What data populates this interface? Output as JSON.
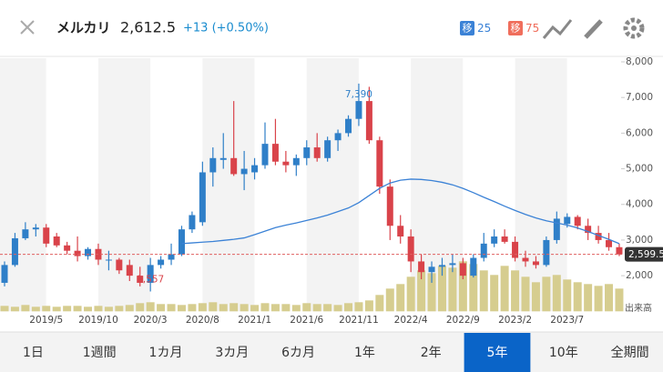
{
  "header": {
    "name": "メルカリ",
    "price": "2,612.5",
    "change": "+13 (+0.50%)",
    "ma_badges": [
      {
        "label": "移",
        "period": 25,
        "color": "#3b82d6"
      },
      {
        "label": "移",
        "period": 75,
        "color": "#f06e5c"
      }
    ]
  },
  "chart_data": {
    "type": "candlestick",
    "categories": [
      null,
      null,
      null,
      null,
      "2019/5",
      null,
      null,
      null,
      null,
      "2019/10",
      null,
      null,
      null,
      null,
      "2020/3",
      null,
      null,
      null,
      null,
      "2020/8",
      null,
      null,
      null,
      null,
      "2021/1",
      null,
      null,
      null,
      null,
      "2021/6",
      null,
      null,
      null,
      null,
      "2021/11",
      null,
      null,
      null,
      null,
      "2022/4",
      null,
      null,
      null,
      null,
      "2022/9",
      null,
      null,
      null,
      null,
      "2023/2",
      null,
      null,
      null,
      null,
      "2023/7",
      null,
      null,
      null,
      null,
      null
    ],
    "open": [
      1800,
      2300,
      3050,
      3300,
      3350,
      3100,
      2850,
      2700,
      2550,
      2750,
      2450,
      2450,
      2300,
      2000,
      1800,
      2300,
      2450,
      2600,
      3300,
      3500,
      4900,
      5250,
      5300,
      4850,
      4900,
      5100,
      5700,
      5200,
      5100,
      5300,
      5600,
      5300,
      5800,
      6000,
      6400,
      6900,
      5800,
      4500,
      3400,
      3100,
      2400,
      2100,
      2250,
      2300,
      2350,
      2000,
      2500,
      2900,
      3100,
      2950,
      2500,
      2400,
      2300,
      3000,
      3450,
      3650,
      3400,
      3200,
      3000,
      2800
    ],
    "high": [
      2400,
      3200,
      3500,
      3450,
      3450,
      3200,
      2950,
      3100,
      2800,
      2900,
      2700,
      2500,
      2450,
      2250,
      2500,
      2550,
      2900,
      3400,
      3800,
      5200,
      5600,
      6000,
      6900,
      5500,
      5300,
      6300,
      6400,
      5500,
      5400,
      5800,
      6000,
      5900,
      6100,
      6500,
      7390,
      7300,
      5900,
      4700,
      3700,
      3300,
      2600,
      2400,
      2500,
      2600,
      2500,
      2600,
      3200,
      3300,
      3300,
      3100,
      2700,
      2550,
      3100,
      3800,
      3750,
      3700,
      3600,
      3400,
      3200,
      2900
    ],
    "low": [
      1700,
      2250,
      3000,
      3100,
      2800,
      2800,
      2600,
      2400,
      2450,
      2300,
      2150,
      2050,
      1850,
      1700,
      1557,
      2200,
      2300,
      2550,
      3200,
      3400,
      4500,
      5000,
      4800,
      4400,
      4700,
      5000,
      5100,
      4900,
      4800,
      5100,
      5200,
      5200,
      5500,
      5900,
      6200,
      5700,
      4300,
      3000,
      2900,
      2100,
      1900,
      1800,
      2000,
      2100,
      1900,
      1950,
      2400,
      2800,
      2900,
      2400,
      2250,
      2200,
      2250,
      2900,
      3350,
      3300,
      3000,
      2900,
      2700,
      2550
    ],
    "close": [
      2300,
      3050,
      3300,
      3350,
      2900,
      2850,
      2700,
      2550,
      2750,
      2450,
      2450,
      2150,
      2000,
      1800,
      2300,
      2450,
      2600,
      3300,
      3700,
      4900,
      5300,
      5300,
      4850,
      5000,
      5100,
      5700,
      5200,
      5100,
      5300,
      5600,
      5300,
      5800,
      6000,
      6400,
      6900,
      5800,
      4500,
      3400,
      3100,
      2400,
      2100,
      2250,
      2300,
      2350,
      2000,
      2500,
      2900,
      3100,
      2950,
      2500,
      2400,
      2300,
      3000,
      3600,
      3650,
      3400,
      3200,
      3000,
      2800,
      2599.5
    ],
    "up_color": "#2f7fc8",
    "down_color": "#d9434a",
    "ylim": [
      1000,
      8000
    ],
    "yticks": [
      {
        "value": 2000,
        "label": "2,000"
      },
      {
        "value": 3000,
        "label": "3,000"
      },
      {
        "value": 4000,
        "label": "4,000"
      },
      {
        "value": 5000,
        "label": "5,000"
      },
      {
        "value": 6000,
        "label": "6,000"
      },
      {
        "value": 7000,
        "label": "7,000"
      },
      {
        "value": 8000,
        "label": "8,000"
      }
    ],
    "volume": {
      "label": "出来高",
      "color": "#d6cd8f",
      "values": [
        6,
        5,
        7,
        5,
        6,
        5,
        6,
        6,
        5,
        6,
        5,
        6,
        7,
        9,
        10,
        8,
        8,
        7,
        8,
        9,
        10,
        8,
        9,
        8,
        7,
        9,
        8,
        8,
        7,
        9,
        8,
        8,
        7,
        9,
        10,
        12,
        18,
        25,
        30,
        38,
        45,
        42,
        50,
        48,
        55,
        52,
        45,
        40,
        50,
        45,
        38,
        32,
        38,
        40,
        35,
        32,
        30,
        28,
        30,
        25
      ]
    },
    "moving_average": {
      "color": "#3b82d6",
      "values": [
        null,
        null,
        null,
        null,
        null,
        null,
        null,
        null,
        null,
        null,
        null,
        null,
        null,
        null,
        null,
        null,
        null,
        2900,
        2920,
        2940,
        2960,
        2990,
        3020,
        3060,
        3150,
        3250,
        3350,
        3420,
        3480,
        3550,
        3620,
        3700,
        3800,
        3900,
        4050,
        4250,
        4450,
        4600,
        4680,
        4710,
        4700,
        4670,
        4620,
        4550,
        4450,
        4330,
        4200,
        4080,
        3950,
        3830,
        3720,
        3620,
        3540,
        3480,
        3420,
        3340,
        3240,
        3130,
        3020,
        2900
      ]
    },
    "high_label": {
      "value": 7390,
      "label": "7,390"
    },
    "low_label": {
      "value": 1557,
      "label": "1,557"
    },
    "last": {
      "value": 2599.5,
      "label": "2,599.5"
    }
  },
  "tabs": {
    "items": [
      "1日",
      "1週間",
      "1カ月",
      "3カ月",
      "6カ月",
      "1年",
      "2年",
      "5年",
      "10年",
      "全期間"
    ],
    "selected": 7
  }
}
